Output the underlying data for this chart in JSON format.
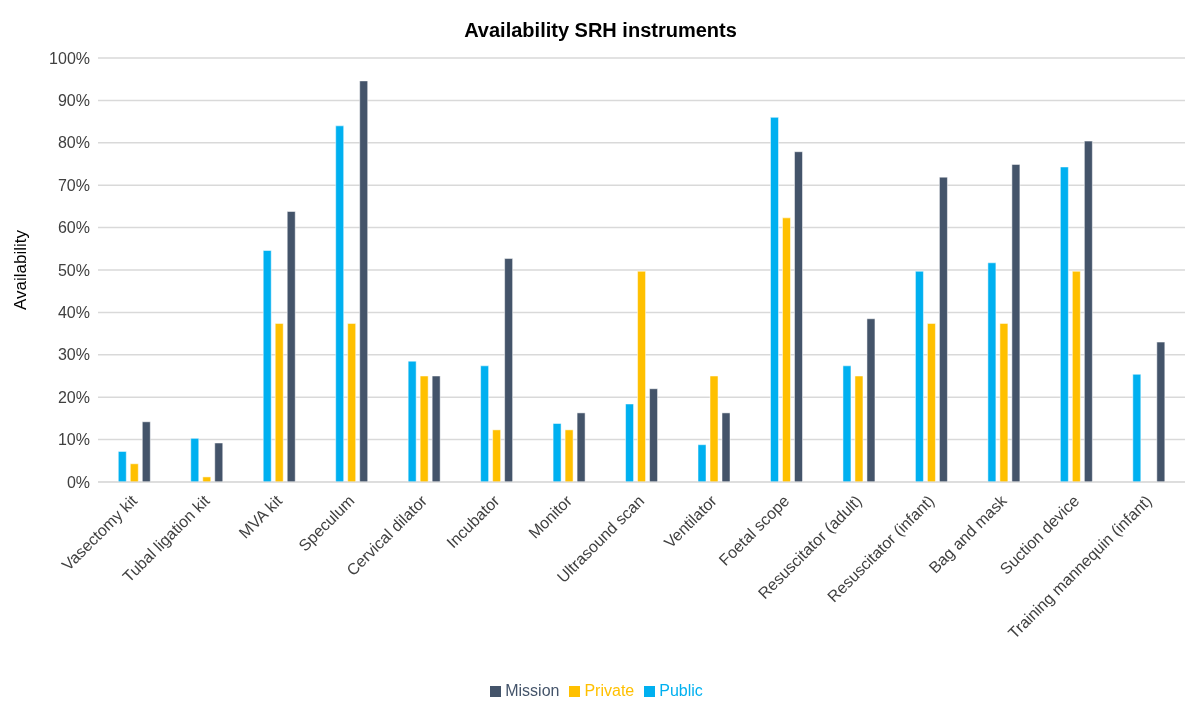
{
  "chart_data": {
    "type": "bar",
    "title": "Availability SRH instruments",
    "ylabel": "Availability",
    "categories": [
      "Vasectomy kit",
      "Tubal ligation kit",
      "MVA kit",
      "Speculum",
      "Cervical dilator",
      "Incubator",
      "Monitor",
      "Ultrasound scan",
      "Ventilator",
      "Foetal scope",
      "Resuscitator (adult)",
      "Resuscitator (infant)",
      "Bag and mask",
      "Suction device",
      "Training mannequin (infant)"
    ],
    "series": [
      {
        "name": "Public",
        "color": "#00b0f0",
        "values": [
          7.2,
          10.3,
          54.6,
          84,
          28.5,
          27.4,
          13.8,
          18.4,
          8.8,
          86,
          27.4,
          49.7,
          51.7,
          74.3,
          25.4
        ]
      },
      {
        "name": "Private",
        "color": "#ffc000",
        "values": [
          4.3,
          1.2,
          37.4,
          37.4,
          25,
          12.3,
          12.3,
          49.7,
          25,
          62.3,
          25,
          37.4,
          37.4,
          49.7,
          0
        ]
      },
      {
        "name": "Mission",
        "color": "#44546a",
        "values": [
          14.2,
          9.2,
          63.8,
          94.6,
          25,
          52.7,
          16.3,
          22,
          16.3,
          77.9,
          38.5,
          71.9,
          74.9,
          80.4,
          33
        ]
      }
    ],
    "ylim": [
      0,
      100
    ],
    "yticks": [
      {
        "value": 0,
        "label": "0%"
      },
      {
        "value": 10,
        "label": "10%"
      },
      {
        "value": 20,
        "label": "20%"
      },
      {
        "value": 30,
        "label": "30%"
      },
      {
        "value": 40,
        "label": "40%"
      },
      {
        "value": 50,
        "label": "50%"
      },
      {
        "value": 60,
        "label": "60%"
      },
      {
        "value": 70,
        "label": "70%"
      },
      {
        "value": 80,
        "label": "80%"
      },
      {
        "value": 90,
        "label": "90%"
      },
      {
        "value": 100,
        "label": "100%"
      }
    ],
    "grid": "y",
    "legend": "bottom"
  }
}
